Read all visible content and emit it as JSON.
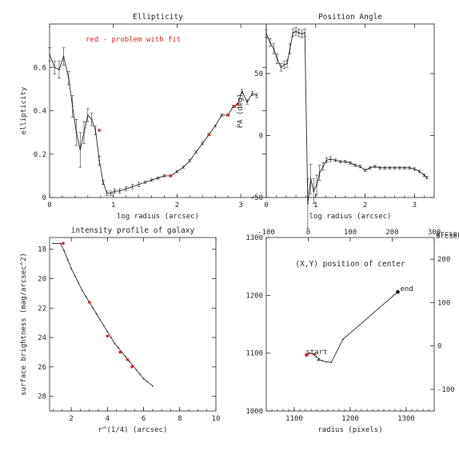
{
  "notes": {
    "problem": "red - problem with fit"
  },
  "chart_data": [
    {
      "id": "ellipticity",
      "type": "line",
      "title": "Ellipticity",
      "xlabel": "log radius (arcsec)",
      "ylabel": "ellipticity",
      "xlim": [
        0,
        3.4
      ],
      "ylim": [
        0,
        0.8
      ],
      "xticks": [
        0,
        1,
        2,
        3
      ],
      "yticks": [
        0,
        0.2,
        0.4,
        0.6
      ],
      "yticklabels": [
        "0",
        "0.2",
        "0.4",
        "0.6"
      ],
      "x": [
        0.0,
        0.08,
        0.15,
        0.22,
        0.3,
        0.36,
        0.42,
        0.48,
        0.54,
        0.6,
        0.66,
        0.72,
        0.78,
        0.84,
        0.9,
        0.96,
        1.02,
        1.1,
        1.2,
        1.3,
        1.4,
        1.5,
        1.6,
        1.7,
        1.8,
        1.9,
        2.0,
        2.1,
        2.2,
        2.3,
        2.4,
        2.5,
        2.6,
        2.7,
        2.8,
        2.88,
        2.95,
        3.02,
        3.1,
        3.18,
        3.25
      ],
      "y": [
        0.66,
        0.6,
        0.59,
        0.65,
        0.55,
        0.42,
        0.3,
        0.22,
        0.3,
        0.38,
        0.36,
        0.31,
        0.17,
        0.07,
        0.02,
        0.02,
        0.03,
        0.03,
        0.04,
        0.05,
        0.06,
        0.07,
        0.08,
        0.09,
        0.1,
        0.1,
        0.12,
        0.14,
        0.17,
        0.21,
        0.25,
        0.29,
        0.33,
        0.38,
        0.38,
        0.42,
        0.43,
        0.49,
        0.44,
        0.48,
        0.47
      ],
      "err": [
        0.03,
        0.03,
        0.04,
        0.04,
        0.03,
        0.05,
        0.06,
        0.08,
        0.05,
        0.03,
        0.03,
        0.02,
        0.02,
        0.01,
        0.01,
        0.01,
        0.01,
        0.01,
        0.01,
        0.01,
        0.01,
        0.005,
        0.005,
        0.005,
        0.005,
        0.005,
        0.005,
        0.005,
        0.005,
        0.005,
        0.005,
        0.005,
        0.005,
        0.005,
        0.005,
        0.005,
        0.005,
        0.01,
        0.01,
        0.01,
        0.01
      ],
      "problem_x": [
        0.78,
        1.9,
        2.5,
        2.8,
        2.9,
        2.95
      ],
      "problem_y": [
        0.31,
        0.1,
        0.29,
        0.38,
        0.42,
        0.43
      ]
    },
    {
      "id": "position-angle",
      "type": "line",
      "title": "Position Angle",
      "xlabel": "log radius (arcsec)",
      "ylabel": "PA (deg)",
      "xlim": [
        0,
        3.4
      ],
      "ylim": [
        -50,
        90
      ],
      "xticks": [
        0,
        1,
        2,
        3
      ],
      "yticks": [
        -50,
        0,
        50
      ],
      "yticklabels": [
        "-50",
        "0",
        "50"
      ],
      "x": [
        0.0,
        0.08,
        0.15,
        0.22,
        0.3,
        0.36,
        0.42,
        0.48,
        0.54,
        0.6,
        0.66,
        0.72,
        0.78,
        0.84,
        0.9,
        0.96,
        1.02,
        1.08,
        1.15,
        1.22,
        1.3,
        1.4,
        1.5,
        1.6,
        1.7,
        1.8,
        1.9,
        2.0,
        2.1,
        2.2,
        2.3,
        2.4,
        2.5,
        2.6,
        2.7,
        2.8,
        2.9,
        3.0,
        3.1,
        3.2,
        3.25
      ],
      "y": [
        82,
        75,
        70,
        62,
        55,
        57,
        58,
        70,
        83,
        84,
        83,
        82,
        83,
        -55,
        -35,
        -45,
        -40,
        -30,
        -25,
        -20,
        -19,
        -20,
        -21,
        -21,
        -22,
        -24,
        -25,
        -28,
        -26,
        -25,
        -26,
        -26,
        -26,
        -26,
        -26,
        -26,
        -26,
        -27,
        -29,
        -32,
        -34
      ],
      "err": [
        3,
        3,
        4,
        4,
        3,
        3,
        3,
        4,
        3,
        3,
        3,
        3,
        3,
        20,
        12,
        10,
        8,
        6,
        3,
        2,
        2,
        1,
        1,
        1,
        1,
        1,
        1,
        1,
        1,
        1,
        1,
        1,
        1,
        1,
        1,
        1,
        1,
        1,
        1,
        1,
        1
      ]
    },
    {
      "id": "intensity-profile",
      "type": "line",
      "title": "intensity profile of galaxy",
      "xlabel": "r^(1/4) (arcsec)",
      "ylabel": "surface brightness (mag/arcsec^2)",
      "xlim": [
        0.8,
        10
      ],
      "ylim": [
        29,
        17.2
      ],
      "xticks": [
        2,
        4,
        6,
        8,
        10
      ],
      "yticks": [
        18,
        20,
        22,
        24,
        26,
        28
      ],
      "yticklabels": [
        "18",
        "20",
        "22",
        "24",
        "26",
        "28"
      ],
      "x": [
        1.0,
        1.4,
        1.6,
        1.8,
        2.0,
        2.2,
        2.4,
        2.6,
        2.8,
        3.0,
        3.2,
        3.4,
        3.6,
        3.8,
        4.0,
        4.2,
        4.4,
        4.6,
        4.8,
        5.0,
        5.2,
        5.4,
        5.6,
        5.8,
        6.0,
        6.2,
        6.5
      ],
      "y": [
        17.6,
        17.6,
        18.1,
        18.7,
        19.3,
        19.8,
        20.3,
        20.8,
        21.2,
        21.6,
        22.0,
        22.4,
        22.8,
        23.2,
        23.6,
        24.0,
        24.4,
        24.7,
        25.0,
        25.3,
        25.6,
        25.9,
        26.2,
        26.5,
        26.8,
        27.0,
        27.3
      ],
      "problem_x": [
        1.55,
        3.0,
        4.0,
        4.7,
        5.1,
        5.35
      ],
      "problem_y": [
        17.6,
        21.6,
        23.9,
        25.0,
        25.5,
        26.0
      ]
    },
    {
      "id": "center-position",
      "type": "line",
      "title": "",
      "annotation": "(X,Y) position of center",
      "xlabel": "radius (pixels)",
      "ylabel": "",
      "xlim": [
        1050,
        1350
      ],
      "ylim": [
        1000,
        1300
      ],
      "xticks": [
        1100,
        1200,
        1300
      ],
      "yticks": [
        1000,
        1100,
        1200,
        1300
      ],
      "yticklabels": [
        "1000",
        "1100",
        "1200",
        "1300"
      ],
      "top_ticks": [
        -100,
        0,
        100,
        200,
        300
      ],
      "top_ticklabels": [
        "-100",
        "0",
        "100",
        "200",
        "300"
      ],
      "top_unit": "arcsec",
      "top_lim": [
        -100,
        300
      ],
      "right_ticks": [
        -100,
        0,
        100,
        200
      ],
      "right_ticklabels": [
        "-100",
        "0",
        "100",
        "200"
      ],
      "right_unit": "arcsec",
      "right_lim": [
        -150,
        250
      ],
      "x": [
        1122,
        1128,
        1134,
        1140,
        1145,
        1142,
        1150,
        1157,
        1166,
        1187,
        1285
      ],
      "y": [
        1097,
        1100,
        1098,
        1093,
        1090,
        1088,
        1087,
        1085,
        1084,
        1124,
        1206
      ],
      "start_label": "start",
      "end_label": "end",
      "start_point": [
        1122,
        1097
      ],
      "end_point": [
        1285,
        1206
      ],
      "problem_x": [
        1136
      ],
      "problem_y": [
        1098
      ]
    }
  ]
}
